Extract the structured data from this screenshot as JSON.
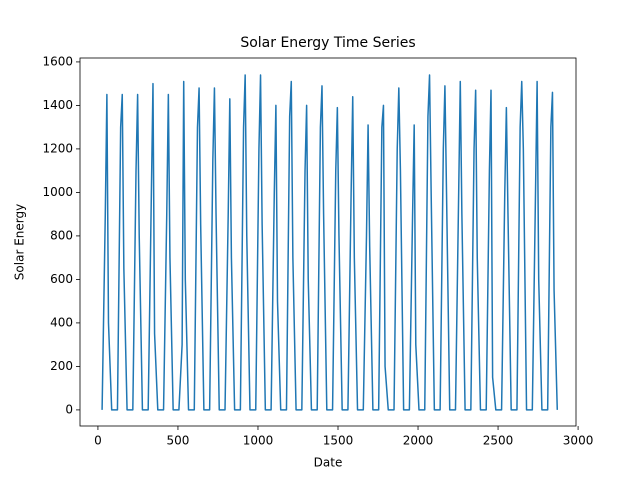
{
  "chart_data": {
    "type": "line",
    "title": "Solar Energy Time Series",
    "x_label": "Date",
    "y_label": "Solar Energy",
    "x": [
      26,
      46,
      56,
      66,
      86,
      122,
      142,
      152,
      162,
      182,
      218,
      238,
      248,
      258,
      278,
      314,
      334,
      344,
      354,
      374,
      410,
      430,
      440,
      450,
      470,
      506,
      526,
      536,
      546,
      566,
      602,
      622,
      632,
      642,
      662,
      698,
      718,
      728,
      738,
      758,
      794,
      814,
      824,
      834,
      854,
      890,
      910,
      920,
      930,
      950,
      986,
      1006,
      1016,
      1026,
      1046,
      1082,
      1102,
      1112,
      1122,
      1142,
      1178,
      1198,
      1208,
      1218,
      1238,
      1274,
      1294,
      1304,
      1314,
      1334,
      1370,
      1390,
      1400,
      1410,
      1430,
      1466,
      1486,
      1496,
      1506,
      1526,
      1562,
      1582,
      1592,
      1602,
      1622,
      1658,
      1678,
      1688,
      1698,
      1718,
      1754,
      1774,
      1784,
      1794,
      1814,
      1850,
      1870,
      1880,
      1890,
      1910,
      1946,
      1966,
      1976,
      1986,
      2006,
      2042,
      2062,
      2072,
      2082,
      2102,
      2138,
      2158,
      2168,
      2178,
      2198,
      2234,
      2254,
      2264,
      2274,
      2294,
      2330,
      2350,
      2360,
      2370,
      2390,
      2426,
      2446,
      2456,
      2466,
      2486,
      2522,
      2542,
      2552,
      2562,
      2582,
      2618,
      2638,
      2648,
      2658,
      2678,
      2714,
      2734,
      2744,
      2754,
      2774,
      2810,
      2830,
      2840,
      2850,
      2870
    ],
    "series": [
      {
        "name": "Solar Energy",
        "color": "#1f77b4",
        "values": [
          0,
          900,
          1450,
          400,
          0,
          0,
          1300,
          1450,
          650,
          0,
          0,
          1100,
          1450,
          800,
          0,
          0,
          1000,
          1500,
          350,
          0,
          0,
          900,
          1450,
          700,
          0,
          0,
          300,
          1510,
          600,
          0,
          0,
          1300,
          1480,
          850,
          0,
          0,
          1150,
          1480,
          900,
          0,
          0,
          900,
          1430,
          700,
          0,
          0,
          1300,
          1540,
          800,
          0,
          0,
          1200,
          1540,
          850,
          0,
          0,
          1000,
          1400,
          500,
          0,
          0,
          1350,
          1510,
          700,
          0,
          0,
          1100,
          1400,
          600,
          0,
          0,
          1300,
          1490,
          900,
          0,
          0,
          1100,
          1390,
          800,
          0,
          0,
          1000,
          1440,
          700,
          0,
          0,
          800,
          1310,
          750,
          0,
          0,
          1300,
          1400,
          200,
          0,
          0,
          1200,
          1480,
          1100,
          0,
          0,
          900,
          1310,
          300,
          0,
          0,
          1350,
          1540,
          1000,
          0,
          0,
          1200,
          1490,
          1000,
          0,
          0,
          1000,
          1510,
          900,
          0,
          0,
          1200,
          1470,
          700,
          0,
          0,
          1100,
          1470,
          150,
          0,
          0,
          1000,
          1390,
          900,
          0,
          0,
          1300,
          1510,
          1200,
          0,
          0,
          1000,
          1510,
          600,
          0,
          0,
          1300,
          1460,
          550,
          0
        ]
      }
    ],
    "xlim": [
      -112,
      2987
    ],
    "ylim": [
      -74,
      1618
    ],
    "xticks": [
      0,
      500,
      1000,
      1500,
      2000,
      2500,
      3000
    ],
    "yticks": [
      0,
      200,
      400,
      600,
      800,
      1000,
      1200,
      1400,
      1600
    ]
  }
}
